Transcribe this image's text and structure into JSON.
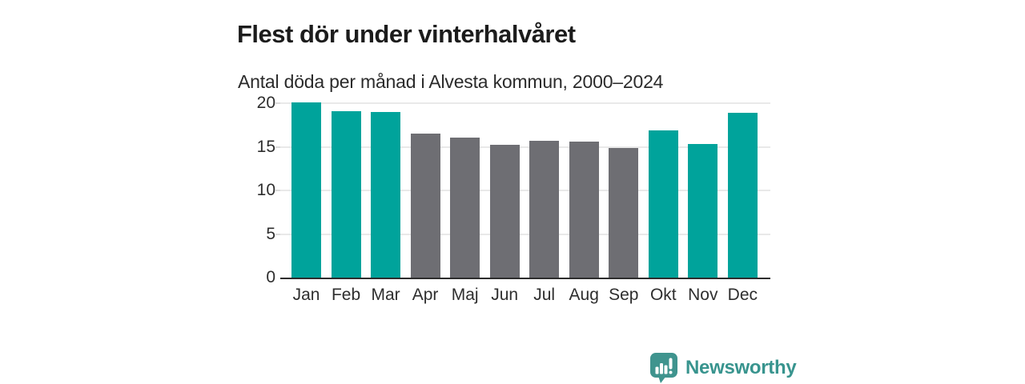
{
  "header": {
    "title": "Flest dör under vinterhalvåret",
    "subtitle": "Antal döda per månad i Alvesta kommun, 2000–2024"
  },
  "chart_data": {
    "type": "bar",
    "categories": [
      "Jan",
      "Feb",
      "Mar",
      "Apr",
      "Maj",
      "Jun",
      "Jul",
      "Aug",
      "Sep",
      "Okt",
      "Nov",
      "Dec"
    ],
    "values": [
      20.1,
      19.1,
      19.0,
      16.5,
      16.1,
      15.2,
      15.7,
      15.6,
      14.9,
      16.9,
      15.3,
      18.9
    ],
    "bar_color_keys": [
      "teal",
      "teal",
      "teal",
      "gray",
      "gray",
      "gray",
      "gray",
      "gray",
      "gray",
      "teal",
      "teal",
      "teal"
    ],
    "colors": {
      "teal": "#00a39b",
      "gray": "#6e6e73"
    },
    "title": "Flest dör under vinterhalvåret",
    "subtitle": "Antal döda per månad i Alvesta kommun, 2000–2024",
    "xlabel": "",
    "ylabel": "",
    "ylim": [
      0,
      20
    ],
    "yticks": [
      0,
      5,
      10,
      15,
      20
    ],
    "grid": true,
    "legend": false,
    "highlight_meaning": "winter half-year months (Jan–Mar, Okt–Dec) in teal, summer months in gray"
  },
  "footer": {
    "brand": "Newsworthy",
    "logo_icon": "bar-chart-speech-bubble-icon",
    "brand_color": "#38948e"
  }
}
